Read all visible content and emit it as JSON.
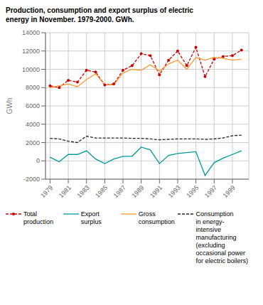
{
  "chart_data": {
    "type": "line",
    "title": "Production, consumption and export surplus of electric\nenergy in November. 1979-2000. GWh.",
    "y_label": "GWh",
    "x": [
      1979,
      1980,
      1981,
      1982,
      1983,
      1984,
      1985,
      1986,
      1987,
      1988,
      1989,
      1990,
      1991,
      1992,
      1993,
      1994,
      1995,
      1996,
      1997,
      1998,
      1999,
      2000
    ],
    "series": [
      {
        "name": "Total\nproduction",
        "color": "#cc0000",
        "line_style": "dashed",
        "marker": "circle",
        "values": [
          8200,
          8000,
          8800,
          8600,
          9900,
          9700,
          8300,
          8400,
          9900,
          10400,
          11700,
          11500,
          9400,
          11000,
          12000,
          10400,
          12400,
          9200,
          11100,
          11400,
          11500,
          12100
        ]
      },
      {
        "name": "Export\nsurplus",
        "color": "#009999",
        "line_style": "solid",
        "marker": "none",
        "values": [
          400,
          -100,
          700,
          700,
          1100,
          200,
          -300,
          200,
          500,
          500,
          1500,
          1200,
          -300,
          600,
          800,
          900,
          1000,
          -1600,
          -200,
          300,
          700,
          1100
        ]
      },
      {
        "name": "Gross\nconsumption",
        "color": "#ff9933",
        "line_style": "solid",
        "marker": "none",
        "values": [
          8000,
          8200,
          8400,
          8100,
          8900,
          9500,
          8300,
          8300,
          9600,
          10000,
          9900,
          10500,
          9800,
          10600,
          11000,
          10000,
          11300,
          11000,
          11300,
          11200,
          11000,
          11100
        ]
      },
      {
        "name": "Consumption\nin energy-\nintensive\nmanufacturing\n(excluding\noccasional power\nfor electric boilers)",
        "color": "#222222",
        "line_style": "dashed",
        "marker": "none",
        "values": [
          2450,
          2400,
          2150,
          2000,
          2700,
          2500,
          2500,
          2500,
          2500,
          2450,
          2450,
          2400,
          2300,
          2350,
          2400,
          2400,
          2400,
          2350,
          2400,
          2500,
          2750,
          2800
        ]
      }
    ],
    "xlim": [
      1978.5,
      2000.8
    ],
    "xticks": [
      1979,
      1981,
      1983,
      1985,
      1987,
      1989,
      1991,
      1993,
      1995,
      1997,
      1999
    ],
    "ylim": [
      -2000,
      14000
    ],
    "yticks": [
      -2000,
      0,
      2000,
      4000,
      6000,
      8000,
      10000,
      12000,
      14000
    ],
    "grid": true
  }
}
